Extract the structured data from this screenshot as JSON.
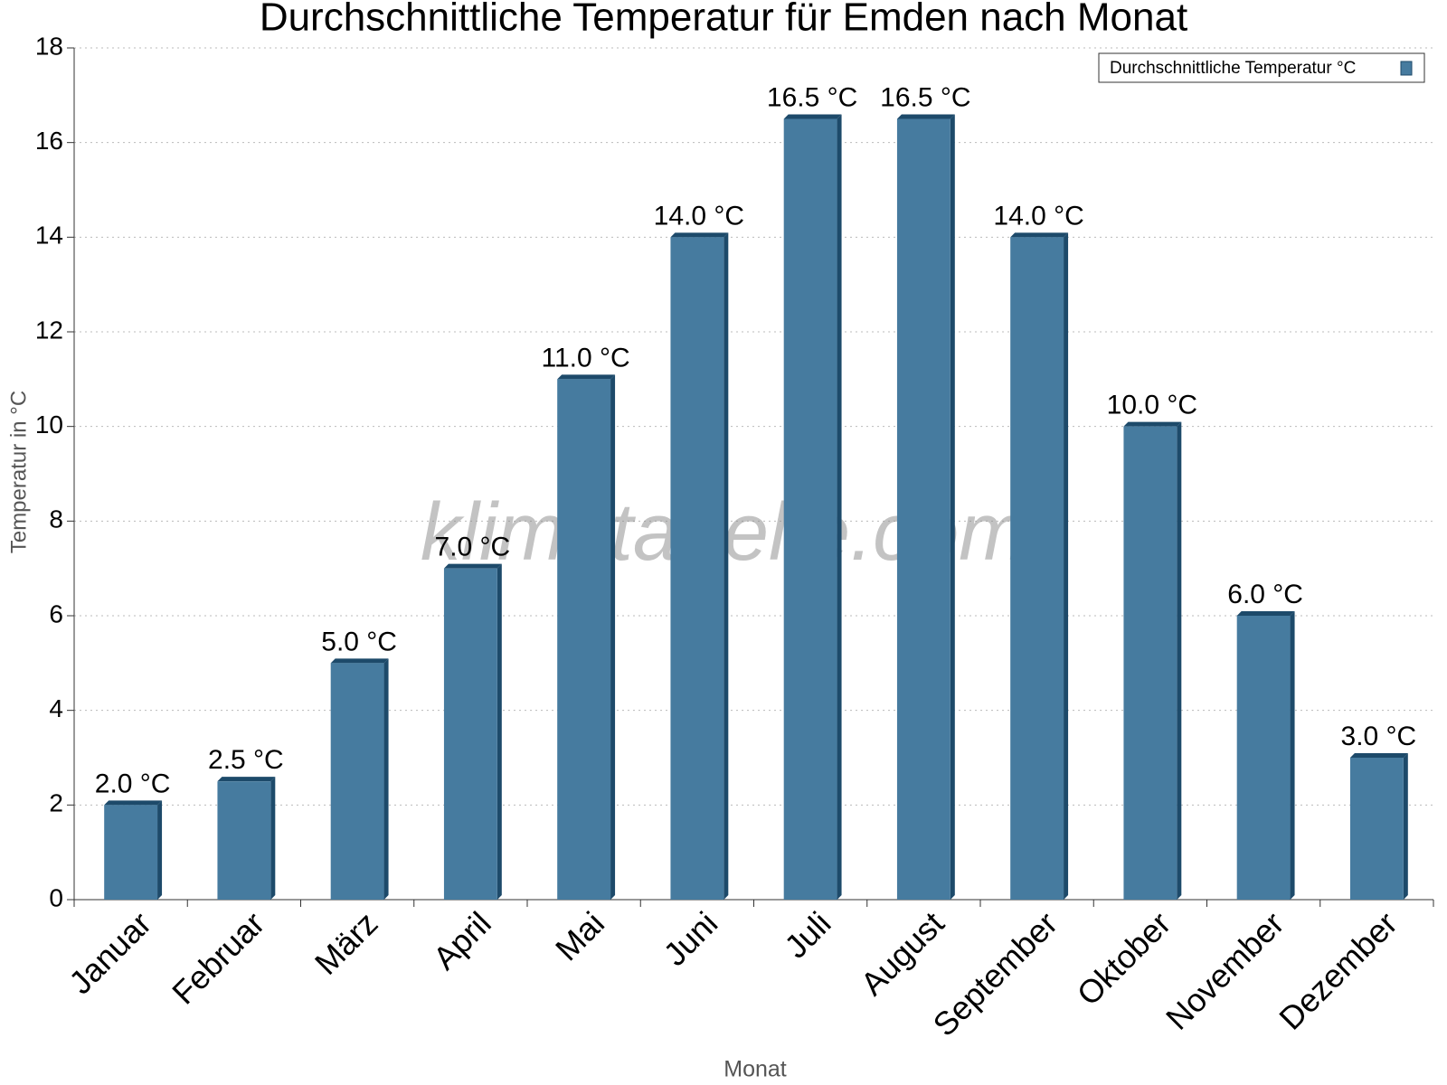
{
  "chart_data": {
    "type": "bar",
    "title": "Durchschnittliche Temperatur für Emden nach Monat",
    "x_label": "Monat",
    "y_label": "Temperatur in °C",
    "watermark": "klimatabelle.com",
    "categories": [
      "Januar",
      "Februar",
      "März",
      "April",
      "Mai",
      "Juni",
      "Juli",
      "August",
      "September",
      "Oktober",
      "November",
      "Dezember"
    ],
    "series": [
      {
        "name": "Durchschnittliche Temperatur °C",
        "color": "#467b9f",
        "values": [
          2.0,
          2.5,
          5.0,
          7.0,
          11.0,
          14.0,
          16.5,
          16.5,
          14.0,
          10.0,
          6.0,
          3.0
        ],
        "value_labels": [
          "2.0 °C",
          "2.5 °C",
          "5.0 °C",
          "7.0 °C",
          "11.0 °C",
          "14.0 °C",
          "16.5 °C",
          "16.5 °C",
          "14.0 °C",
          "10.0 °C",
          "6.0 °C",
          "3.0 °C"
        ]
      }
    ],
    "ylim": [
      0,
      18
    ],
    "yticks": [
      0,
      2,
      4,
      6,
      8,
      10,
      12,
      14,
      16,
      18
    ],
    "grid": true,
    "legend": "top-right"
  }
}
